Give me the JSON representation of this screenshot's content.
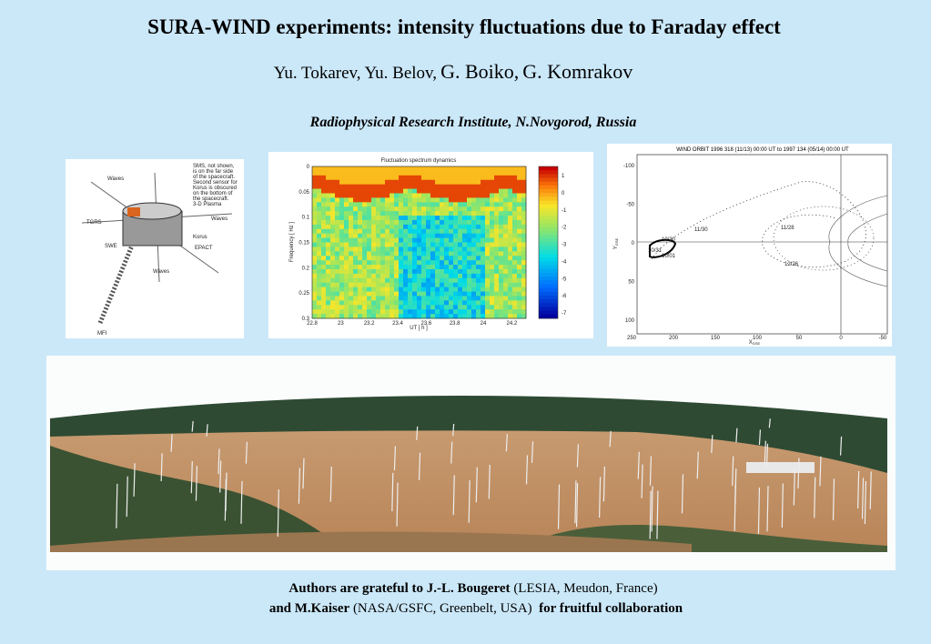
{
  "header": {
    "title": "SURA-WIND experiments: intensity fluctuations due to Faraday effect",
    "authors": [
      "Yu. Tokarev,",
      "Yu. Belov,",
      "G. Boiko,",
      "G. Komrakov"
    ],
    "affiliation": "Radiophysical Research Institute, N.Novgorod, Russia"
  },
  "spacecraft": {
    "labels": [
      "Waves",
      "SMS, not shown,",
      "is on the far side",
      "of the spacecraft.",
      "Second sensor for",
      "Korus is obscured",
      "on the bottom of",
      "the spacecraft.",
      "3-D Plasma",
      "TGRS",
      "Waves",
      "Korus",
      "EPACT",
      "SWE",
      "Waves",
      "MFI"
    ]
  },
  "spectrum": {
    "title": "Fluctuation spectrum dynamics",
    "ylabel": "Frequency [ Hz ]",
    "xlabel": "UT [ h ]",
    "xticks": [
      "22.8",
      "23",
      "23.2",
      "23.4",
      "23.6",
      "23.8",
      "24",
      "24.2"
    ],
    "yticks": [
      "0",
      "0.05",
      "0.1",
      "0.15",
      "0.2",
      "0.25",
      "0.3"
    ],
    "colorbar": [
      "1",
      "0",
      "-1",
      "-2",
      "-3",
      "-4",
      "-5",
      "-6",
      "-7"
    ]
  },
  "orbit": {
    "title": "WIND ORBIT 1996 318 (11/13) 00:00 UT to 1997 134 (05/14) 00:00 UT",
    "yticks": [
      "-100",
      "-50",
      "0",
      "50",
      "100"
    ],
    "xticks": [
      "250",
      "200",
      "150",
      "100",
      "50",
      "0",
      "-50"
    ],
    "xlabel": "X",
    "xlabel_sub": "GSE",
    "ylabel": "Y",
    "ylabel_sub": "GSE",
    "points": [
      "10/30",
      "11/28",
      "12/26",
      "10/31",
      "10/01",
      "11/30"
    ]
  },
  "footer": {
    "line1": [
      "Authors are grateful to J.-L. Bougeret",
      " (LESIA, Meudon, France)"
    ],
    "line2": [
      "and M.Kaiser",
      " (NASA/GSFC, Greenbelt, USA)",
      "  for fruitful collaboration"
    ]
  }
}
